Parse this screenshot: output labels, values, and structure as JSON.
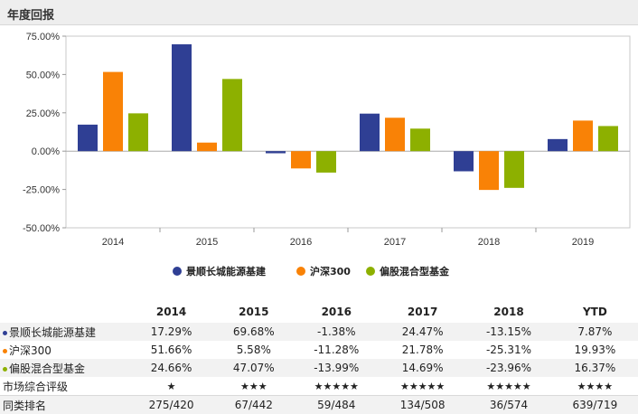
{
  "header": {
    "title": "年度回报"
  },
  "colors": {
    "s1": "#2f3f94",
    "s2": "#f98206",
    "s3": "#8db000",
    "star": "#e3131b"
  },
  "chart_data": {
    "type": "bar",
    "categories": [
      "2014",
      "2015",
      "2016",
      "2017",
      "2018",
      "2019"
    ],
    "series": [
      {
        "name": "景顺长城能源基建",
        "values": [
          17.29,
          69.68,
          -1.38,
          24.47,
          -13.15,
          7.87
        ]
      },
      {
        "name": "沪深300",
        "values": [
          51.66,
          5.58,
          -11.28,
          21.78,
          -25.31,
          19.93
        ]
      },
      {
        "name": "偏股混合型基金",
        "values": [
          24.66,
          47.07,
          -13.99,
          14.69,
          -23.96,
          16.37
        ]
      }
    ],
    "ylim": [
      -50,
      75
    ],
    "yticks": [
      "75.00%",
      "50.00%",
      "25.00%",
      "0.00%",
      "-25.00%",
      "-50.00%"
    ],
    "ytick_values": [
      75,
      50,
      25,
      0,
      -25,
      -50
    ],
    "grid": false,
    "legend": "bottom"
  },
  "table": {
    "headers": [
      "2014",
      "2015",
      "2016",
      "2017",
      "2018",
      "YTD"
    ],
    "rows": [
      {
        "label": "景顺长城能源基建",
        "dot": "#2f3f94",
        "values": [
          "17.29%",
          "69.68%",
          "-1.38%",
          "24.47%",
          "-13.15%",
          "7.87%"
        ]
      },
      {
        "label": "沪深300",
        "dot": "#f98206",
        "values": [
          "51.66%",
          "5.58%",
          "-11.28%",
          "21.78%",
          "-25.31%",
          "19.93%"
        ]
      },
      {
        "label": "偏股混合型基金",
        "dot": "#8db000",
        "values": [
          "24.66%",
          "47.07%",
          "-13.99%",
          "14.69%",
          "-23.96%",
          "16.37%"
        ]
      }
    ],
    "rating_label": "市场综合评级",
    "ratings": [
      1,
      3,
      5,
      5,
      5,
      4
    ],
    "rank_label": "同类排名",
    "ranks": [
      "275/420",
      "67/442",
      "59/484",
      "134/508",
      "36/574",
      "639/719"
    ]
  }
}
